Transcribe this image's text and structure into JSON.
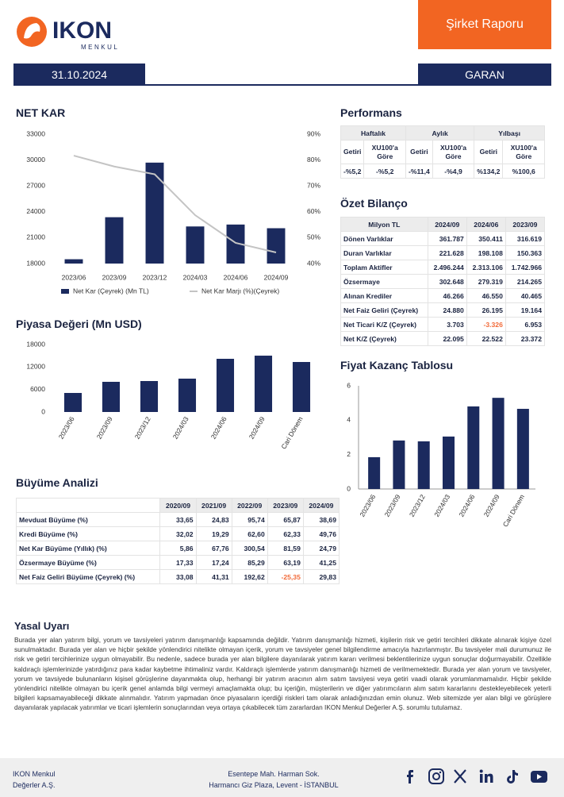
{
  "header": {
    "logo_name": "IKON",
    "logo_sub": "MENKUL",
    "report_type": "Şirket Raporu",
    "date": "31.10.2024",
    "ticker": "GARAN"
  },
  "performance": {
    "title": "Performans",
    "periods": [
      "Haftalık",
      "Aylık",
      "Yılbaşı"
    ],
    "columns": [
      "Getiri",
      "XU100'a Göre",
      "Getiri",
      "XU100'a Göre",
      "Getiri",
      "XU100'a Göre"
    ],
    "values": [
      "-%5,2",
      "-%5,2",
      "-%11,4",
      "-%4,9",
      "%134,2",
      "%100,6"
    ]
  },
  "balance": {
    "title": "Özet Bilanço",
    "header": [
      "Milyon TL",
      "2024/09",
      "2024/06",
      "2023/09"
    ],
    "rows": [
      [
        "Dönen Varlıklar",
        "361.787",
        "350.411",
        "316.619"
      ],
      [
        "Duran Varlıklar",
        "221.628",
        "198.108",
        "150.363"
      ],
      [
        "Toplam Aktifler",
        "2.496.244",
        "2.313.106",
        "1.742.966"
      ],
      [
        "Özsermaye",
        "302.648",
        "279.319",
        "214.265"
      ],
      [
        "Alınan Krediler",
        "46.266",
        "46.550",
        "40.465"
      ],
      [
        "Net Faiz Geliri (Çeyrek)",
        "24.880",
        "26.195",
        "19.164"
      ],
      [
        "Net Ticari K/Z (Çeyrek)",
        "3.703",
        "-3.326",
        "6.953"
      ],
      [
        "Net K/Z (Çeyrek)",
        "22.095",
        "22.522",
        "23.372"
      ]
    ]
  },
  "growth": {
    "title": "Büyüme Analizi",
    "header": [
      "2020/09",
      "2021/09",
      "2022/09",
      "2023/09",
      "2024/09"
    ],
    "rows": [
      [
        "Mevduat Büyüme (%)",
        "33,65",
        "24,83",
        "95,74",
        "65,87",
        "38,69"
      ],
      [
        "Kredi Büyüme (%)",
        "32,02",
        "19,29",
        "62,60",
        "62,33",
        "49,76"
      ],
      [
        "Net Kar Büyüme (Yıllık) (%)",
        "5,86",
        "67,76",
        "300,54",
        "81,59",
        "24,79"
      ],
      [
        "Özsermaye Büyüme (%)",
        "17,33",
        "17,24",
        "85,29",
        "63,19",
        "41,25"
      ],
      [
        "Net Faiz Geliri Büyüme (Çeyrek) (%)",
        "33,08",
        "41,31",
        "192,62",
        "-25,35",
        "29,83"
      ]
    ]
  },
  "disclaimer": {
    "title": "Yasal Uyarı",
    "text": "Burada yer alan yatırım bilgi, yorum ve tavsiyeleri yatırım danışmanlığı kapsamında değildir. Yatırım danışmanlığı hizmeti, kişilerin risk ve getiri tercihleri dikkate alınarak kişiye özel sunulmaktadır. Burada yer alan ve hiçbir şekilde yönlendirici nitelikte olmayan içerik, yorum ve tavsiyeler genel bilgilendirme amacıyla hazırlanmıştır. Bu tavsiyeler mali durumunuz ile risk ve getiri tercihlerinize uygun olmayabilir. Bu nedenle, sadece burada yer alan bilgilere dayanılarak yatırım kararı verilmesi beklentilerinize uygun sonuçlar doğurmayabilir. Özellikle kaldıraçlı işlemlerinizde yatırdığınız para kadar kaybetme ihtimaliniz vardır. Kaldıraçlı işlemlerde yatırım danışmanlığı hizmeti de verilmemektedir. Burada yer alan yorum ve tavsiyeler, yorum ve tavsiyede bulunanların kişisel görüşlerine dayanmakta olup, herhangi bir yatırım aracının alım satım tavsiyesi veya getiri vaadi olarak yorumlanmamalıdır. Hiçbir şekilde yönlendirici nitelikte olmayan bu içerik genel anlamda bilgi vermeyi amaçlamakta olup; bu içeriğin, müşterilerin ve diğer yatırımcıların alım satım kararlarını destekleyebilecek yeterli bilgileri kapsamayabileceği dikkate alınmalıdır. Yatırım yapmadan önce piyasaların içerdiği riskleri tam olarak anladığınızdan emin olunuz. Web sitemizde yer alan bilgi ve görüşlere dayanılarak yapılacak yatırımlar ve ticari işlemlerin sonuçlarından veya ortaya çıkabilecek tüm zararlardan IKON Menkul Değerler A.Ş. sorumlu tutulamaz."
  },
  "footer": {
    "company": [
      "IKON Menkul",
      "Değerler A.Ş."
    ],
    "address": [
      "Esentepe Mah. Harman Sok.",
      "Harmancı Giz Plaza, Levent - İSTANBUL"
    ]
  },
  "chart_data": [
    {
      "type": "combo",
      "title": "NET KAR",
      "categories": [
        "2023/06",
        "2023/09",
        "2023/12",
        "2024/03",
        "2024/06",
        "2024/09"
      ],
      "series": [
        {
          "name": "Net Kar (Çeyrek) (Mn TL)",
          "color": "#1b2a5e",
          "type": "bar",
          "values": [
            18500,
            23372,
            29700,
            22300,
            22522,
            22095
          ]
        },
        {
          "name": "Net Kar Marjı (%)(Çeyrek)",
          "color": "#c4c4c4",
          "type": "line",
          "axis": "y2",
          "values": [
            81.7,
            77.5,
            74.5,
            58.7,
            48,
            44.3
          ]
        }
      ],
      "ylim": [
        18000,
        33000
      ],
      "yticks": [
        18000,
        21000,
        24000,
        27000,
        30000,
        33000
      ],
      "y2lim": [
        40,
        90
      ],
      "y2ticks": [
        {
          "value": 40,
          "label": "40%"
        },
        {
          "value": 50,
          "label": "50%"
        },
        {
          "value": 60,
          "label": "60%"
        },
        {
          "value": 70,
          "label": "70%"
        },
        {
          "value": 80,
          "label": "80%"
        },
        {
          "value": 90,
          "label": "90%"
        }
      ],
      "grid": false,
      "legend": "bottom"
    },
    {
      "type": "bar",
      "title": "Piyasa Değeri (Mn USD)",
      "categories": [
        "2023/06",
        "2023/09",
        "2023/12",
        "2024/03",
        "2024/06",
        "2024/09",
        "Cari Dönem"
      ],
      "values": [
        5080,
        8050,
        8260,
        8900,
        14190,
        15030,
        13340
      ],
      "color": "#1b2a5e",
      "ylim": [
        0,
        18000
      ],
      "yticks": [
        0,
        6000,
        12000,
        18000
      ],
      "grid": false
    },
    {
      "type": "bar",
      "title": "Fiyat Kazanç Tablosu",
      "categories": [
        "2023/06",
        "2023/09",
        "2023/12",
        "2024/03",
        "2024/06",
        "2024/09",
        "Cari Dönem"
      ],
      "values": [
        1.85,
        2.82,
        2.77,
        3.05,
        4.8,
        5.3,
        4.66
      ],
      "color": "#1b2a5e",
      "ylim": [
        0,
        6
      ],
      "yticks": [
        0,
        2,
        4,
        6
      ],
      "grid": false
    }
  ]
}
